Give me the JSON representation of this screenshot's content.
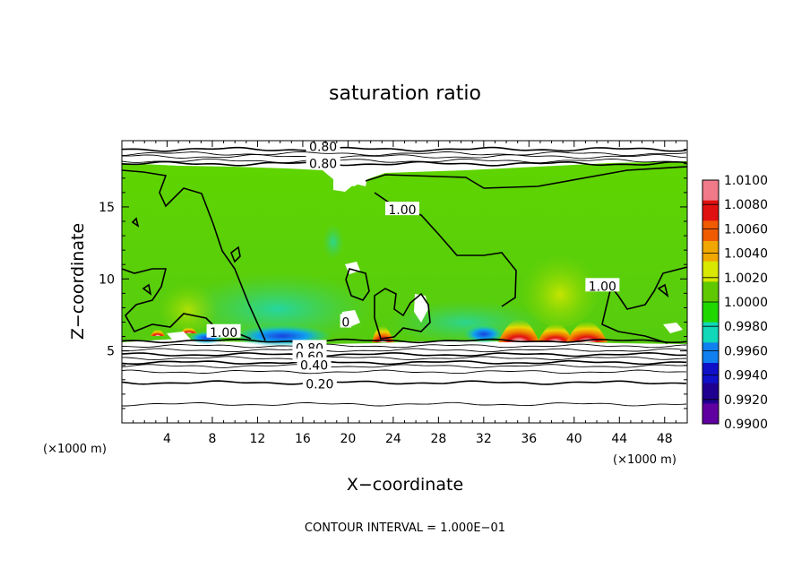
{
  "chart_data": {
    "type": "heatmap",
    "title": "saturation ratio",
    "xlabel": "X−coordinate",
    "ylabel": "Z−coordinate",
    "x_unit_left": "(×1000 m)",
    "x_unit_right": "(×1000 m)",
    "xlim": [
      0,
      50
    ],
    "ylim": [
      0,
      19.6
    ],
    "x_ticks": [
      4,
      8,
      12,
      16,
      20,
      24,
      28,
      32,
      36,
      40,
      44,
      48
    ],
    "y_ticks": [
      5,
      10,
      15
    ],
    "footer": "CONTOUR INTERVAL = 1.000E−01",
    "colorbar": {
      "levels": [
        "1.0100",
        "1.0080",
        "1.0060",
        "1.0040",
        "1.0020",
        "1.0000",
        "0.9980",
        "0.9960",
        "0.9940",
        "0.9920",
        "0.9900"
      ],
      "colors": [
        "#f07a8a",
        "#e01010",
        "#f05a00",
        "#f0a800",
        "#d8e800",
        "#60c800",
        "#20d800",
        "#10d8b8",
        "#1080f0",
        "#1010c8",
        "#200090",
        "#6000a0"
      ]
    },
    "contour_labels": [
      {
        "text": "0.80",
        "x": 17.8,
        "y": 19.2
      },
      {
        "text": "0.80",
        "x": 17.8,
        "y": 18.0
      },
      {
        "text": "1.00",
        "x": 24.8,
        "y": 14.8
      },
      {
        "text": "1.00",
        "x": 9.0,
        "y": 6.3
      },
      {
        "text": "1.00",
        "x": 42.5,
        "y": 9.5
      },
      {
        "text": "0.80",
        "x": 16.6,
        "y": 5.2
      },
      {
        "text": "0.60",
        "x": 16.6,
        "y": 4.6
      },
      {
        "text": "0.40",
        "x": 17.0,
        "y": 4.0
      },
      {
        "text": "0.20",
        "x": 17.5,
        "y": 2.7
      },
      {
        "text": "0",
        "x": 19.8,
        "y": 7.0
      }
    ],
    "isolines_below": [
      5.7,
      5.35,
      5.05,
      4.75,
      4.5,
      4.2,
      3.95,
      3.55,
      2.8,
      1.3
    ],
    "isolines_above": [
      19.0,
      18.7,
      18.5,
      18.2,
      18.0
    ]
  }
}
